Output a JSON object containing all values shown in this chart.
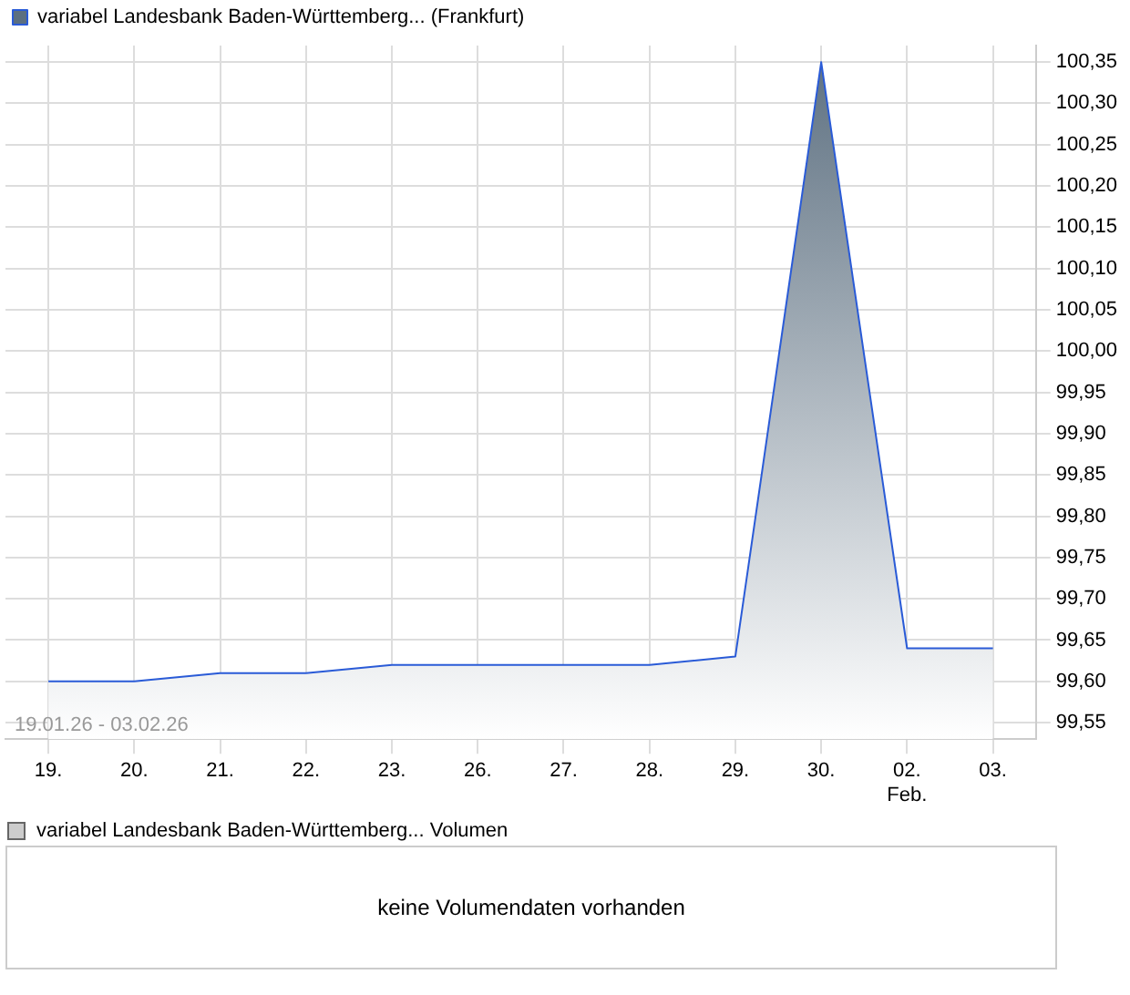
{
  "chart_data": {
    "type": "area",
    "categories": [
      "19.",
      "20.",
      "21.",
      "22.",
      "23.",
      "26.",
      "27.",
      "28.",
      "29.",
      "30.",
      "02.\nFeb.",
      "03."
    ],
    "series": [
      {
        "name": "variabel Landesbank Baden-Württemberg... (Frankfurt)",
        "color": "#2a5bd7",
        "values": [
          99.6,
          99.6,
          99.61,
          99.61,
          99.62,
          99.62,
          99.62,
          99.62,
          99.63,
          100.35,
          99.64,
          99.64
        ]
      }
    ],
    "ylim": [
      99.53,
      100.37
    ],
    "yticks": [
      {
        "value": 99.55,
        "label": "99,55"
      },
      {
        "value": 99.6,
        "label": "99,60"
      },
      {
        "value": 99.65,
        "label": "99,65"
      },
      {
        "value": 99.7,
        "label": "99,70"
      },
      {
        "value": 99.75,
        "label": "99,75"
      },
      {
        "value": 99.8,
        "label": "99,80"
      },
      {
        "value": 99.85,
        "label": "99,85"
      },
      {
        "value": 99.9,
        "label": "99,90"
      },
      {
        "value": 99.95,
        "label": "99,95"
      },
      {
        "value": 100,
        "label": "100,00"
      },
      {
        "value": 100.05,
        "label": "100,05"
      },
      {
        "value": 100.1,
        "label": "100,10"
      },
      {
        "value": 100.15,
        "label": "100,15"
      },
      {
        "value": 100.2,
        "label": "100,20"
      },
      {
        "value": 100.25,
        "label": "100,25"
      },
      {
        "value": 100.3,
        "label": "100,30"
      },
      {
        "value": 100.35,
        "label": "100,35"
      }
    ],
    "grid": true,
    "legend": "top left",
    "annotations": [
      "19.01.26 - 03.02.26",
      "variabel Landesbank Baden-Württemberg... Volumen",
      "keine Volumendaten vorhanden"
    ]
  }
}
